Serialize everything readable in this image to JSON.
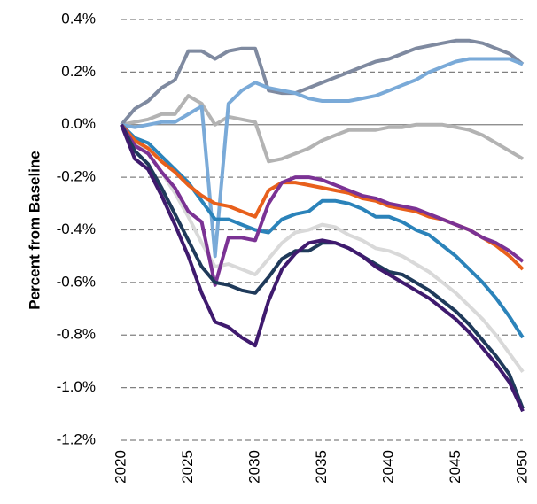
{
  "chart_data": {
    "type": "line",
    "y_label": "Percent from Baseline",
    "x": [
      2020,
      2021,
      2022,
      2023,
      2024,
      2025,
      2026,
      2027,
      2028,
      2029,
      2030,
      2031,
      2032,
      2033,
      2034,
      2035,
      2036,
      2037,
      2038,
      2039,
      2040,
      2041,
      2042,
      2043,
      2044,
      2045,
      2046,
      2047,
      2048,
      2049,
      2050
    ],
    "xlim": [
      2020,
      2050
    ],
    "xticks": [
      2020,
      2025,
      2030,
      2035,
      2040,
      2045,
      2050
    ],
    "ylim": [
      -1.2,
      0.4
    ],
    "yticks": [
      {
        "value": -1.2,
        "label": "-1.2%"
      },
      {
        "value": -1.0,
        "label": "-1.0%"
      },
      {
        "value": -0.8,
        "label": "-0.8%"
      },
      {
        "value": -0.6,
        "label": "-0.6%"
      },
      {
        "value": -0.4,
        "label": "-0.4%"
      },
      {
        "value": -0.2,
        "label": "-0.2%"
      },
      {
        "value": 0.0,
        "label": "0.0%"
      },
      {
        "value": 0.2,
        "label": "0.2%"
      },
      {
        "value": 0.4,
        "label": "0.4%"
      }
    ],
    "grid": true,
    "series": [
      {
        "color": "#b3b3b3",
        "values": [
          0,
          0.01,
          0.02,
          0.04,
          0.04,
          0.11,
          0.08,
          0.0,
          0.03,
          0.02,
          0.01,
          -0.14,
          -0.13,
          -0.11,
          -0.09,
          -0.06,
          -0.04,
          -0.02,
          -0.02,
          -0.02,
          -0.01,
          -0.01,
          0.0,
          0.0,
          0.0,
          -0.01,
          -0.02,
          -0.04,
          -0.07,
          -0.1,
          -0.13
        ]
      },
      {
        "color": "#d9d9d9",
        "values": [
          0,
          -0.07,
          -0.11,
          -0.18,
          -0.26,
          -0.35,
          -0.45,
          -0.54,
          -0.53,
          -0.55,
          -0.57,
          -0.51,
          -0.45,
          -0.41,
          -0.4,
          -0.38,
          -0.39,
          -0.42,
          -0.44,
          -0.47,
          -0.48,
          -0.5,
          -0.53,
          -0.56,
          -0.6,
          -0.64,
          -0.69,
          -0.74,
          -0.8,
          -0.87,
          -0.94
        ]
      },
      {
        "color": "#7f8aa0",
        "values": [
          0,
          0.06,
          0.09,
          0.14,
          0.17,
          0.28,
          0.28,
          0.25,
          0.28,
          0.29,
          0.29,
          0.13,
          0.12,
          0.12,
          0.14,
          0.16,
          0.18,
          0.2,
          0.22,
          0.24,
          0.25,
          0.27,
          0.29,
          0.3,
          0.31,
          0.32,
          0.32,
          0.31,
          0.29,
          0.27,
          0.23
        ]
      },
      {
        "color": "#7aaad8",
        "values": [
          0,
          -0.01,
          0,
          0.01,
          0.01,
          0.04,
          0.07,
          -0.5,
          0.08,
          0.13,
          0.16,
          0.14,
          0.13,
          0.12,
          0.1,
          0.09,
          0.09,
          0.09,
          0.1,
          0.11,
          0.13,
          0.15,
          0.17,
          0.2,
          0.22,
          0.24,
          0.25,
          0.25,
          0.25,
          0.25,
          0.23
        ]
      },
      {
        "color": "#2b83ba",
        "values": [
          0,
          -0.05,
          -0.07,
          -0.12,
          -0.17,
          -0.22,
          -0.29,
          -0.36,
          -0.36,
          -0.38,
          -0.4,
          -0.41,
          -0.36,
          -0.34,
          -0.33,
          -0.29,
          -0.29,
          -0.3,
          -0.32,
          -0.35,
          -0.35,
          -0.37,
          -0.4,
          -0.42,
          -0.46,
          -0.5,
          -0.55,
          -0.6,
          -0.66,
          -0.73,
          -0.81
        ]
      },
      {
        "color": "#e8601c",
        "values": [
          0,
          -0.06,
          -0.09,
          -0.14,
          -0.18,
          -0.23,
          -0.27,
          -0.3,
          -0.31,
          -0.33,
          -0.35,
          -0.25,
          -0.22,
          -0.22,
          -0.23,
          -0.24,
          -0.25,
          -0.26,
          -0.28,
          -0.29,
          -0.31,
          -0.32,
          -0.33,
          -0.35,
          -0.36,
          -0.38,
          -0.4,
          -0.43,
          -0.46,
          -0.5,
          -0.55
        ]
      },
      {
        "color": "#7b3294",
        "values": [
          0,
          -0.08,
          -0.11,
          -0.18,
          -0.24,
          -0.33,
          -0.37,
          -0.61,
          -0.43,
          -0.43,
          -0.44,
          -0.3,
          -0.22,
          -0.2,
          -0.2,
          -0.21,
          -0.23,
          -0.25,
          -0.27,
          -0.28,
          -0.3,
          -0.31,
          -0.32,
          -0.34,
          -0.36,
          -0.38,
          -0.4,
          -0.43,
          -0.45,
          -0.48,
          -0.52
        ]
      },
      {
        "color": "#1f3a5a",
        "values": [
          0,
          -0.1,
          -0.15,
          -0.24,
          -0.34,
          -0.44,
          -0.54,
          -0.6,
          -0.61,
          -0.63,
          -0.64,
          -0.58,
          -0.51,
          -0.48,
          -0.48,
          -0.45,
          -0.45,
          -0.47,
          -0.5,
          -0.53,
          -0.56,
          -0.57,
          -0.6,
          -0.63,
          -0.67,
          -0.71,
          -0.76,
          -0.82,
          -0.88,
          -0.95,
          -1.08
        ]
      },
      {
        "color": "#3f1a6e",
        "values": [
          0,
          -0.13,
          -0.17,
          -0.27,
          -0.38,
          -0.5,
          -0.64,
          -0.75,
          -0.77,
          -0.81,
          -0.84,
          -0.67,
          -0.55,
          -0.49,
          -0.45,
          -0.44,
          -0.45,
          -0.47,
          -0.5,
          -0.54,
          -0.57,
          -0.6,
          -0.63,
          -0.66,
          -0.7,
          -0.74,
          -0.79,
          -0.85,
          -0.91,
          -0.98,
          -1.09
        ]
      }
    ]
  }
}
